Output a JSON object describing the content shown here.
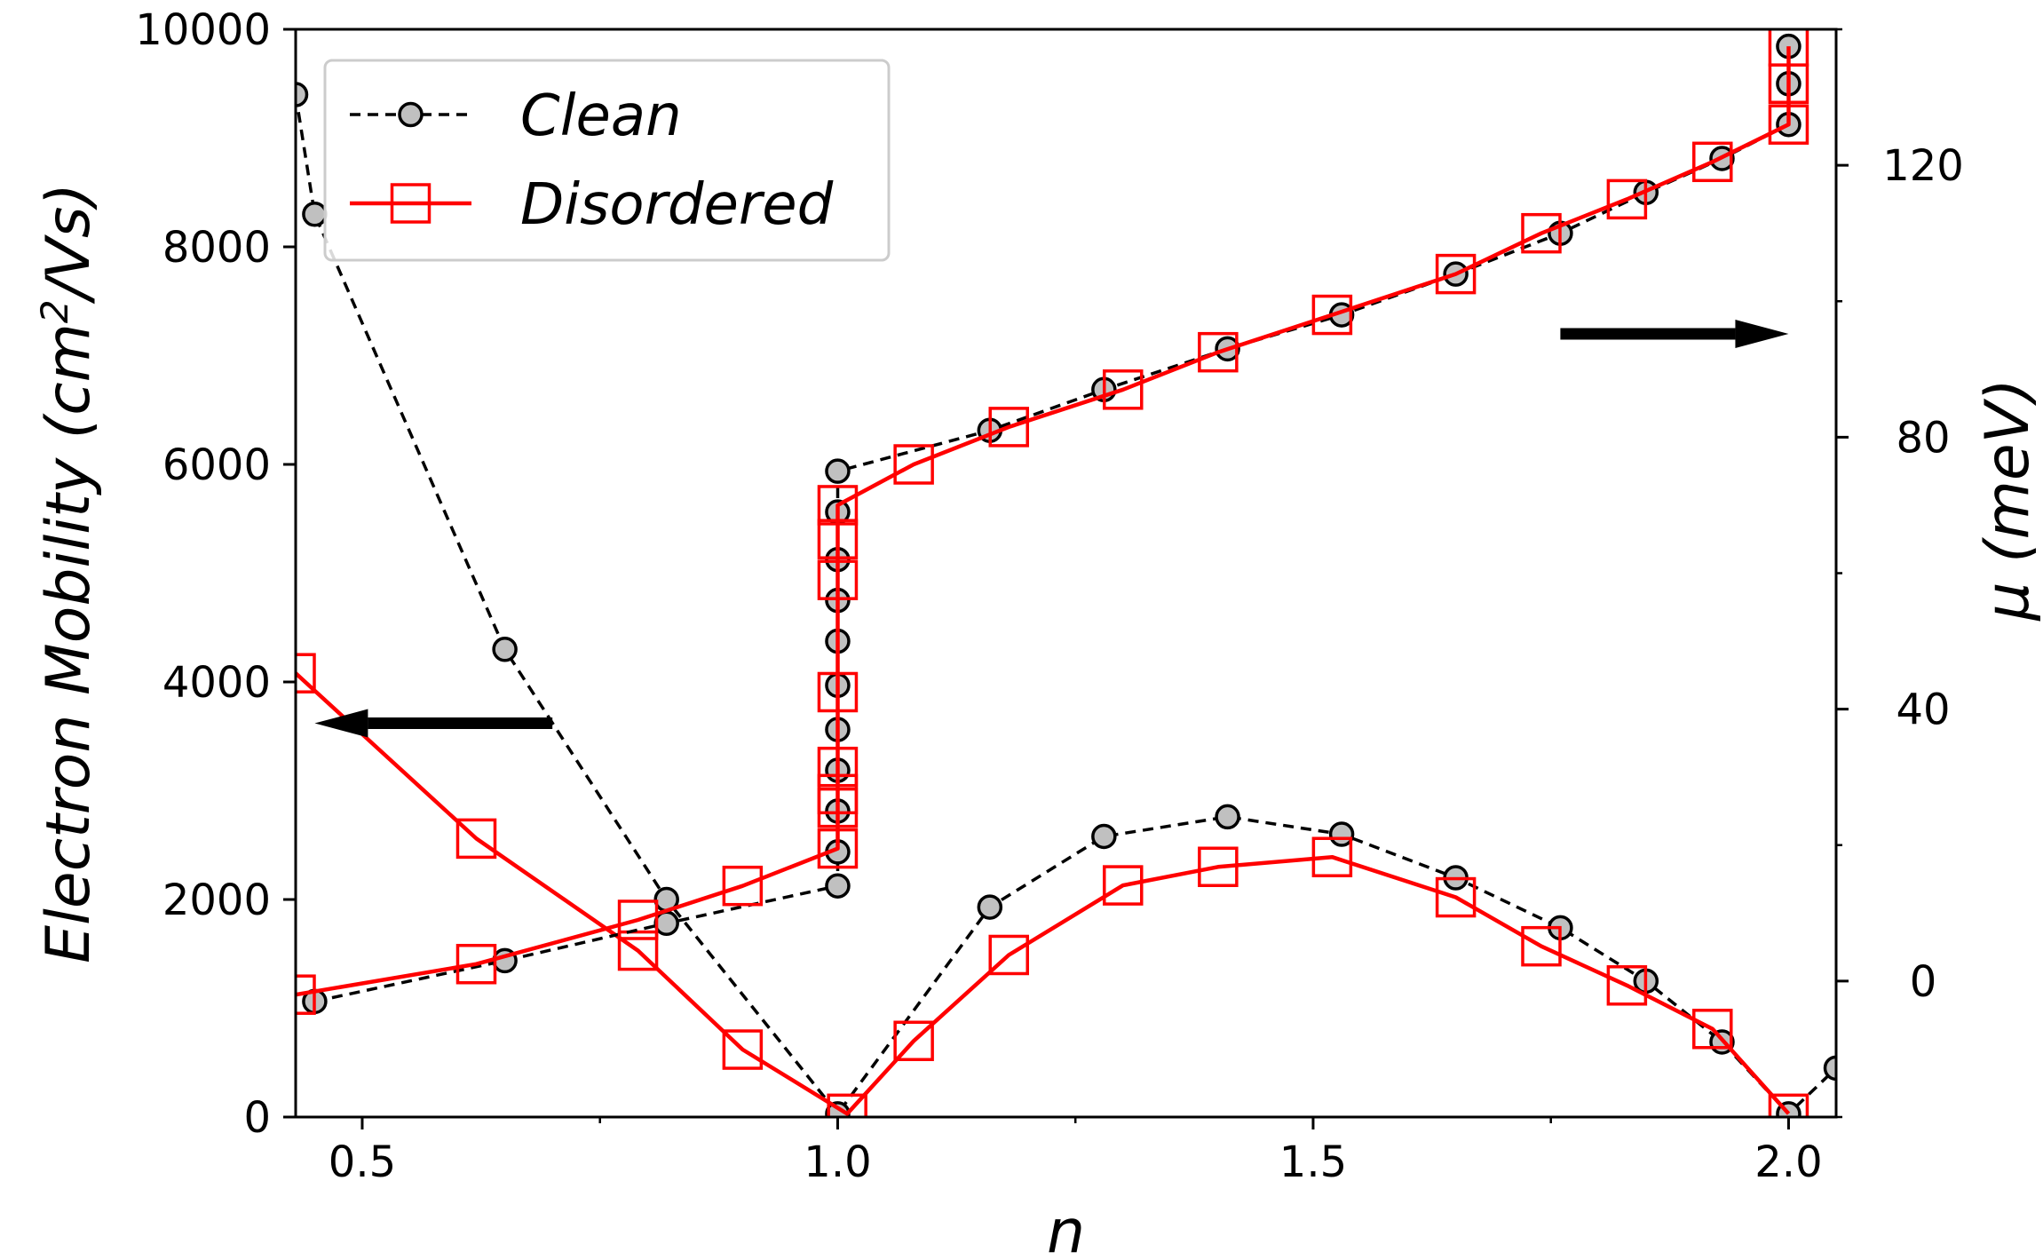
{
  "chart_data": {
    "type": "line",
    "title": "",
    "xlabel": "n",
    "ylabel_left": "Electron Mobility (cm",
    "ylabel_left_sup": "2",
    "ylabel_left_tail": "/Vs)",
    "ylabel_right": "μ (meV)",
    "xlim": [
      0.43,
      2.05
    ],
    "ylim_left": [
      0,
      10000
    ],
    "ylim_right": [
      -20,
      140
    ],
    "x_ticks": [
      0.5,
      1.0,
      1.5,
      2.0
    ],
    "x_tick_labels": [
      "0.5",
      "1.0",
      "1.5",
      "2.0"
    ],
    "x_minor_ticks": [
      0.75,
      1.25,
      1.75
    ],
    "y_left_ticks": [
      0,
      2000,
      4000,
      6000,
      8000,
      10000
    ],
    "y_left_tick_labels": [
      "0",
      "2000",
      "4000",
      "6000",
      "8000",
      "10000"
    ],
    "y_right_ticks": [
      0,
      40,
      80,
      120
    ],
    "y_right_tick_labels": [
      "0",
      "40",
      "80",
      "120"
    ],
    "y_right_minor_ticks": [
      -20,
      20,
      60,
      100,
      140
    ],
    "grid": false,
    "legend": {
      "placement": "top-left",
      "entries": [
        {
          "label": "Clean",
          "color": "#000000",
          "marker": "circle",
          "linestyle": "dashed",
          "marker_fill": "#c0c0c0"
        },
        {
          "label": "Disordered",
          "color": "#ff0000",
          "marker": "square",
          "linestyle": "solid",
          "marker_fill": "none"
        }
      ]
    },
    "annotations": [
      {
        "type": "arrow",
        "meaning": "mobility curves use left axis",
        "direction": "left"
      },
      {
        "type": "arrow",
        "meaning": "chemical potential curves use right axis",
        "direction": "right"
      }
    ],
    "series": [
      {
        "name": "Clean",
        "quantity": "Electron Mobility",
        "axis": "left",
        "style": "clean",
        "points": [
          [
            0.43,
            9400
          ],
          [
            0.45,
            8300
          ],
          [
            0.65,
            4300
          ],
          [
            0.82,
            2000
          ],
          [
            1.0,
            30
          ],
          [
            1.16,
            1930
          ],
          [
            1.28,
            2580
          ],
          [
            1.41,
            2760
          ],
          [
            1.53,
            2600
          ],
          [
            1.65,
            2200
          ],
          [
            1.76,
            1740
          ],
          [
            1.85,
            1250
          ],
          [
            1.93,
            690
          ],
          [
            2.0,
            30
          ],
          [
            2.05,
            450
          ]
        ]
      },
      {
        "name": "Disordered",
        "quantity": "Electron Mobility",
        "axis": "left",
        "style": "disordered",
        "points": [
          [
            0.43,
            4080
          ],
          [
            0.62,
            2560
          ],
          [
            0.79,
            1530
          ],
          [
            0.9,
            620
          ],
          [
            1.01,
            30
          ],
          [
            1.08,
            700
          ],
          [
            1.18,
            1490
          ],
          [
            1.3,
            2130
          ],
          [
            1.4,
            2300
          ],
          [
            1.52,
            2390
          ],
          [
            1.65,
            2020
          ],
          [
            1.74,
            1570
          ],
          [
            1.83,
            1210
          ],
          [
            1.92,
            810
          ],
          [
            2.0,
            30
          ]
        ]
      },
      {
        "name": "Clean",
        "quantity": "μ",
        "axis": "right",
        "style": "clean",
        "points": [
          [
            0.45,
            -3
          ],
          [
            0.65,
            3
          ],
          [
            0.82,
            8.5
          ],
          [
            1.0,
            14
          ],
          [
            1.0,
            19
          ],
          [
            1.0,
            25
          ],
          [
            1.0,
            31
          ],
          [
            1.0,
            37
          ],
          [
            1.0,
            43.5
          ],
          [
            1.0,
            50
          ],
          [
            1.0,
            56
          ],
          [
            1.0,
            62
          ],
          [
            1.0,
            69
          ],
          [
            1.0,
            75
          ],
          [
            1.16,
            81
          ],
          [
            1.28,
            87
          ],
          [
            1.41,
            93
          ],
          [
            1.53,
            98
          ],
          [
            1.65,
            104
          ],
          [
            1.76,
            110
          ],
          [
            1.85,
            116
          ],
          [
            1.93,
            121
          ],
          [
            2.0,
            126
          ],
          [
            2.0,
            132
          ],
          [
            2.0,
            137.5
          ]
        ]
      },
      {
        "name": "Disordered",
        "quantity": "μ",
        "axis": "right",
        "style": "disordered",
        "points": [
          [
            0.43,
            -2
          ],
          [
            0.62,
            2.5
          ],
          [
            0.79,
            9
          ],
          [
            0.9,
            14
          ],
          [
            1.0,
            19.5
          ],
          [
            1.0,
            25.5
          ],
          [
            1.0,
            27.5
          ],
          [
            1.0,
            31.5
          ],
          [
            1.0,
            42.5
          ],
          [
            1.0,
            59
          ],
          [
            1.0,
            65
          ],
          [
            1.0,
            70
          ],
          [
            1.08,
            76
          ],
          [
            1.18,
            81.5
          ],
          [
            1.3,
            87
          ],
          [
            1.4,
            92.5
          ],
          [
            1.52,
            98
          ],
          [
            1.65,
            104
          ],
          [
            1.74,
            110
          ],
          [
            1.83,
            115
          ],
          [
            1.92,
            120.5
          ],
          [
            2.0,
            126
          ],
          [
            2.0,
            132
          ],
          [
            2.0,
            137.5
          ]
        ]
      }
    ]
  }
}
